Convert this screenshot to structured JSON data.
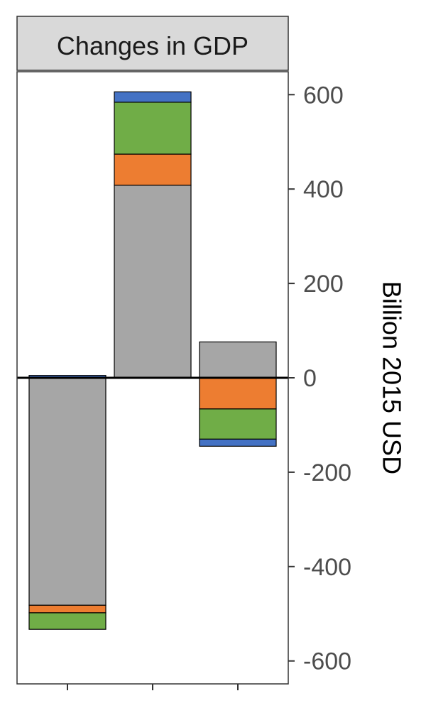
{
  "chart_data": {
    "type": "bar",
    "stacked": true,
    "title": "Changes in GDP",
    "ylabel": "Billion 2015 USD",
    "xlabel": "",
    "ylim": [
      -650,
      650
    ],
    "yticks": [
      -600,
      -400,
      -200,
      0,
      200,
      400,
      600
    ],
    "y_axis_position": "right",
    "grid": false,
    "legend": "none",
    "categories": [
      "",
      "",
      ""
    ],
    "series": [
      {
        "color": "#a6a6a6",
        "values": [
          -482,
          408,
          76
        ]
      },
      {
        "color": "#ed7d31",
        "values": [
          -16,
          66,
          -66
        ]
      },
      {
        "color": "#70ad47",
        "values": [
          -35,
          110,
          -64
        ]
      },
      {
        "color": "#4472c4",
        "values": [
          5,
          22,
          -15
        ]
      }
    ]
  }
}
